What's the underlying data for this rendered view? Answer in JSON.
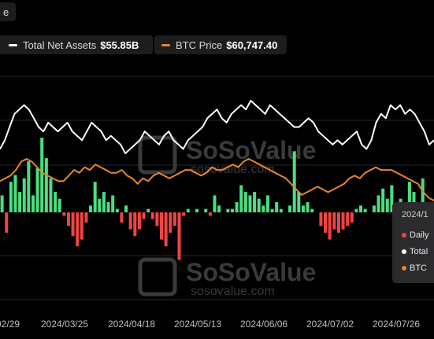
{
  "legend": {
    "partial_label": "e",
    "total_net_assets": {
      "label": "Total Net Assets",
      "value": "$55.85B"
    },
    "btc_price": {
      "label": "BTC Price",
      "value": "$60,747.40"
    }
  },
  "watermark": {
    "brand": "SoSoValue",
    "url": "sosovalue.com"
  },
  "tooltip": {
    "date": "2024/1",
    "rows": [
      {
        "label": "Daily",
        "color": "#ef4444"
      },
      {
        "label": "Total",
        "color": "#ffffff"
      },
      {
        "label": "BTC",
        "color": "#e8862a"
      }
    ]
  },
  "colors": {
    "inflow": "#4ade80",
    "outflow": "#ef4444",
    "total_assets": "#ffffff",
    "btc_price": "#e8862a",
    "background": "#000000"
  },
  "chart_data": {
    "type": "bar",
    "x_ticks": [
      "02/29",
      "2024/03/25",
      "2024/04/18",
      "2024/05/13",
      "2024/06/06",
      "2024/07/02",
      "2024/07/26"
    ],
    "grid": true,
    "series": [
      {
        "name": "Daily",
        "type": "bar",
        "values": [
          0.5,
          -0.6,
          0.9,
          1.1,
          0.6,
          1.0,
          1.5,
          0.5,
          1.3,
          2.2,
          1.6,
          1.0,
          0.6,
          0.4,
          -0.1,
          -0.4,
          -0.7,
          -1.0,
          -0.8,
          -0.3,
          0.2,
          0.9,
          0.4,
          0.6,
          0.3,
          0.5,
          0.1,
          -0.3,
          0.2,
          -0.5,
          -0.7,
          -0.5,
          -0.2,
          0.1,
          -0.2,
          -0.4,
          -0.8,
          -1.0,
          -0.6,
          -0.4,
          -1.4,
          -0.1,
          0.1,
          0.0,
          0.1,
          0.0,
          0.1,
          -0.1,
          0.5,
          0.2,
          0.0,
          0.1,
          0.1,
          0.3,
          0.8,
          0.6,
          0.5,
          0.6,
          0.4,
          0.2,
          0.5,
          0.1,
          0.3,
          0.1,
          0.0,
          0.2,
          1.8,
          0.6,
          0.2,
          0.3,
          0.1,
          0.0,
          -0.4,
          -0.6,
          -0.8,
          -0.5,
          -0.6,
          -0.5,
          -0.4,
          -0.3,
          0.1,
          0.2,
          0.1,
          0.0,
          0.2,
          0.5,
          0.7,
          0.4,
          0.8,
          0.2,
          0.4,
          0.1,
          0.9,
          0.6,
          0.3,
          1.0,
          0.0,
          0.1
        ]
      },
      {
        "name": "Total",
        "type": "line",
        "values": [
          51,
          53,
          56,
          59,
          60,
          61,
          60,
          58,
          56,
          55,
          57,
          56,
          55,
          56,
          57,
          55,
          54,
          53,
          55,
          57,
          56,
          55,
          53,
          54,
          53,
          52,
          50,
          51,
          52,
          53,
          55,
          54,
          53,
          52,
          54,
          55,
          53,
          52,
          51,
          53,
          54,
          55,
          56,
          58,
          59,
          60,
          58,
          57,
          59,
          60,
          61,
          60,
          62,
          61,
          60,
          59,
          61,
          60,
          59,
          58,
          57,
          56,
          56,
          57,
          58,
          57,
          55,
          54,
          53,
          52,
          53,
          52,
          53,
          54,
          55,
          52,
          51,
          53,
          57,
          59,
          58,
          61,
          60,
          61,
          59,
          60,
          59,
          57,
          55,
          52,
          53
        ]
      },
      {
        "name": "BTC",
        "type": "line",
        "values": [
          61,
          62,
          63,
          65,
          68,
          69,
          68,
          66,
          64,
          63,
          62,
          61,
          61,
          63,
          65,
          64,
          66,
          65,
          67,
          66,
          65,
          64,
          64,
          65,
          63,
          62,
          60,
          62,
          61,
          63,
          64,
          63,
          62,
          63,
          64,
          65,
          65,
          64,
          63,
          64,
          66,
          65,
          65,
          66,
          67,
          66,
          68,
          69,
          68,
          67,
          66,
          65,
          64,
          63,
          62,
          60,
          58,
          56,
          57,
          58,
          59,
          58,
          57,
          58,
          59,
          60,
          62,
          63,
          62,
          64,
          65,
          66,
          65,
          65,
          65,
          64,
          63,
          62,
          61,
          60,
          57,
          55,
          54
        ]
      }
    ]
  }
}
